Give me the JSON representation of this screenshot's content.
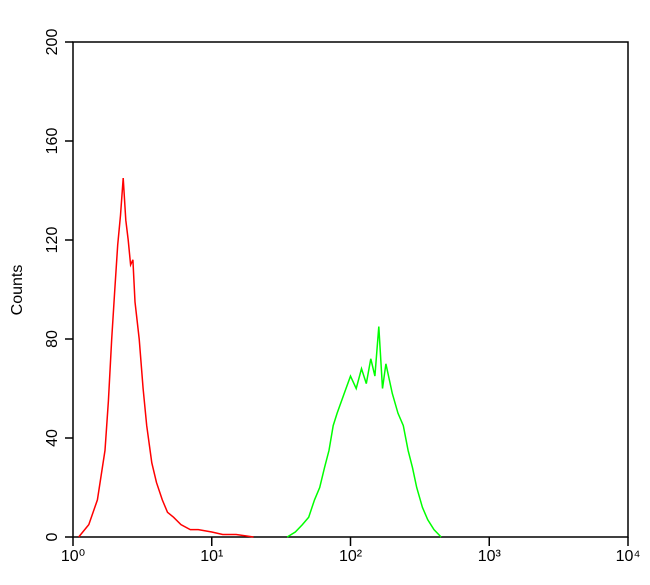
{
  "chart_data": {
    "type": "line",
    "ylabel": "Counts",
    "xscale": "log",
    "xlim": [
      1,
      10000
    ],
    "xticks": [
      {
        "value": 1,
        "label": "10⁰"
      },
      {
        "value": 10,
        "label": "10¹"
      },
      {
        "value": 100,
        "label": "10²"
      },
      {
        "value": 1000,
        "label": "10³"
      },
      {
        "value": 10000,
        "label": "10⁴"
      }
    ],
    "ylim": [
      0,
      200
    ],
    "yticks": [
      0,
      40,
      80,
      120,
      160,
      200
    ],
    "series": [
      {
        "color": "#ff0000",
        "x": [
          1.1,
          1.3,
          1.5,
          1.7,
          1.8,
          1.9,
          2.0,
          2.1,
          2.2,
          2.3,
          2.4,
          2.5,
          2.6,
          2.7,
          2.8,
          3.0,
          3.2,
          3.4,
          3.7,
          4.0,
          4.4,
          4.8,
          5.3,
          6,
          7,
          8,
          10,
          12,
          15,
          20
        ],
        "values": [
          0,
          5,
          15,
          35,
          55,
          80,
          100,
          118,
          130,
          145,
          128,
          120,
          110,
          112,
          95,
          80,
          60,
          45,
          30,
          22,
          15,
          10,
          8,
          5,
          3,
          3,
          2,
          1,
          1,
          0
        ]
      },
      {
        "color": "#00ff00",
        "x": [
          35,
          40,
          45,
          50,
          55,
          60,
          65,
          70,
          75,
          80,
          90,
          100,
          110,
          120,
          130,
          140,
          150,
          160,
          170,
          180,
          200,
          220,
          240,
          260,
          280,
          300,
          330,
          360,
          400,
          450
        ],
        "values": [
          0,
          2,
          5,
          8,
          15,
          20,
          28,
          35,
          45,
          50,
          58,
          65,
          60,
          68,
          62,
          72,
          65,
          85,
          60,
          70,
          58,
          50,
          45,
          35,
          28,
          20,
          12,
          7,
          3,
          0
        ]
      }
    ]
  }
}
